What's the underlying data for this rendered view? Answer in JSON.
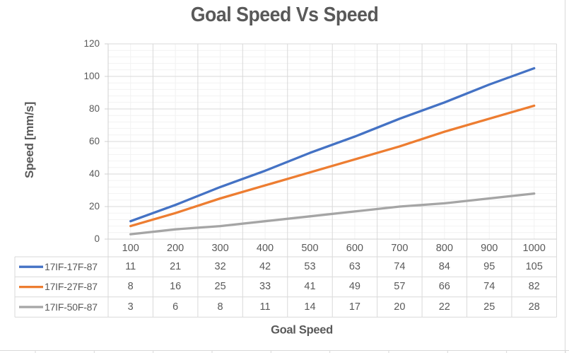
{
  "chart_data": {
    "type": "line",
    "title": "Goal Speed Vs Speed",
    "xlabel": "Goal Speed",
    "ylabel": "Speed [mm/s]",
    "categories": [
      100,
      200,
      300,
      400,
      500,
      600,
      700,
      800,
      900,
      1000
    ],
    "series": [
      {
        "name": "17IF-17F-87",
        "color": "#4472C4",
        "values": [
          11,
          21,
          32,
          42,
          53,
          63,
          74,
          84,
          95,
          105
        ]
      },
      {
        "name": "17IF-27F-87",
        "color": "#ED7D31",
        "values": [
          8,
          16,
          25,
          33,
          41,
          49,
          57,
          66,
          74,
          82
        ]
      },
      {
        "name": "17IF-50F-87",
        "color": "#A5A5A5",
        "values": [
          3,
          6,
          8,
          11,
          14,
          17,
          20,
          22,
          25,
          28
        ]
      }
    ],
    "y_axis": {
      "min": 0,
      "max": 120,
      "major_unit": 20,
      "minor_unit": 4,
      "ticks": [
        0,
        20,
        40,
        60,
        80,
        100,
        120
      ]
    },
    "x_axis": {
      "tick_labels": [
        "100",
        "200",
        "300",
        "400",
        "500",
        "600",
        "700",
        "800",
        "900",
        "1000"
      ]
    },
    "grid": {
      "major": true,
      "minor": true,
      "major_color": "#D9D9D9",
      "minor_color": "#F2F2F2"
    },
    "legend_position": "data-table-left",
    "text_color": "#595959",
    "axis_line_color": "#D0D0D0",
    "table_border_color": "#D9D9D9",
    "worksheet_edge_color": "#D9D9D9"
  }
}
